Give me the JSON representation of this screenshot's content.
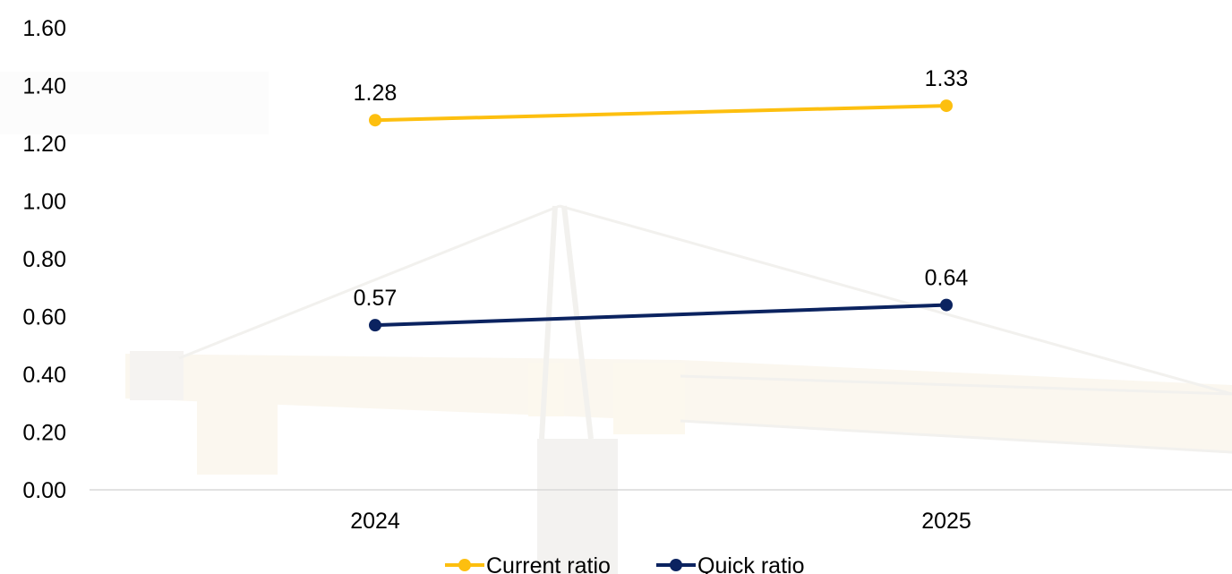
{
  "chart_data": {
    "type": "line",
    "x": [
      "2024",
      "2025"
    ],
    "ylim": [
      0,
      1.6
    ],
    "yticks": [
      "0.00",
      "0.20",
      "0.40",
      "0.60",
      "0.80",
      "1.00",
      "1.20",
      "1.40",
      "1.60"
    ],
    "grid": false,
    "legend_position": "bottom",
    "series": [
      {
        "name": "Current ratio",
        "values": [
          1.28,
          1.33
        ],
        "labels": [
          "1.28",
          "1.33"
        ],
        "color": "#FDBF0F"
      },
      {
        "name": "Quick ratio",
        "values": [
          0.57,
          0.64
        ],
        "labels": [
          "0.57",
          "0.64"
        ],
        "color": "#0B2360"
      }
    ],
    "axis_color": "#D9D9D9",
    "background": "faded-tower-crane-photo"
  }
}
